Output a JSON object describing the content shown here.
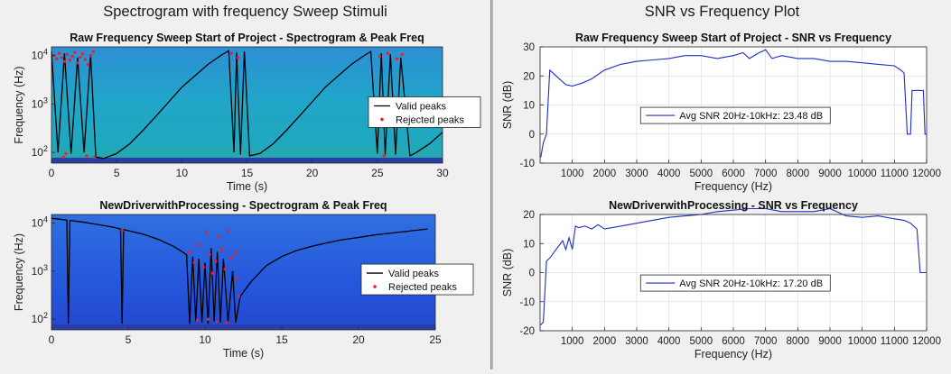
{
  "panels": {
    "left_title": "Spectrogram with frequency Sweep Stimuli",
    "right_title": "SNR vs Frequency Plot"
  },
  "colors": {
    "valid_peaks": "#000000",
    "rejected_peaks": "#e8222a",
    "snr_line": "#1f2fbf",
    "spectrogram_floor": "#2a3ca8"
  },
  "chart_data": [
    {
      "id": "spec1",
      "type": "spectrogram",
      "title": "Raw Frequency Sweep Start of Project - Spectrogram & Peak Freq",
      "xlabel": "Time (s)",
      "ylabel": "Frequency (Hz)",
      "xlim": [
        0,
        30
      ],
      "ylim": [
        60,
        15000
      ],
      "yscale": "log",
      "xticks": [
        0,
        5,
        10,
        15,
        20,
        25,
        30
      ],
      "yticks": [
        {
          "value": 100,
          "base": "10",
          "exp": "2"
        },
        {
          "value": 1000,
          "base": "10",
          "exp": "3"
        },
        {
          "value": 10000,
          "base": "10",
          "exp": "4"
        }
      ],
      "legend": {
        "placement": "right",
        "entries": [
          "Valid peaks",
          "Rejected peaks"
        ]
      },
      "series": [
        {
          "name": "Valid peaks",
          "kind": "line",
          "points": [
            [
              0.0,
              12000
            ],
            [
              0.5,
              100
            ],
            [
              1.0,
              11000
            ],
            [
              1.5,
              95
            ],
            [
              2.0,
              9000
            ],
            [
              2.5,
              100
            ],
            [
              3.0,
              10500
            ],
            [
              3.4,
              80
            ],
            [
              4.0,
              75
            ],
            [
              5.0,
              95
            ],
            [
              6.0,
              150
            ],
            [
              7.0,
              280
            ],
            [
              8.0,
              550
            ],
            [
              9.0,
              1100
            ],
            [
              10.0,
              2200
            ],
            [
              11.0,
              3800
            ],
            [
              12.0,
              6500
            ],
            [
              13.0,
              10000
            ],
            [
              13.6,
              12500
            ],
            [
              14.0,
              100
            ],
            [
              14.2,
              11500
            ],
            [
              14.5,
              90
            ],
            [
              14.8,
              12000
            ],
            [
              15.2,
              85
            ],
            [
              16.0,
              95
            ],
            [
              17.0,
              150
            ],
            [
              18.0,
              280
            ],
            [
              19.0,
              550
            ],
            [
              20.0,
              1100
            ],
            [
              21.0,
              2200
            ],
            [
              22.0,
              3800
            ],
            [
              23.0,
              6500
            ],
            [
              24.0,
              10000
            ],
            [
              24.5,
              12000
            ],
            [
              25.0,
              95
            ],
            [
              25.3,
              11000
            ],
            [
              25.6,
              90
            ],
            [
              26.0,
              10500
            ],
            [
              26.4,
              90
            ],
            [
              26.8,
              9000
            ],
            [
              27.5,
              85
            ],
            [
              28.0,
              100
            ],
            [
              29.0,
              150
            ],
            [
              30.0,
              260
            ]
          ]
        },
        {
          "name": "Rejected peaks",
          "kind": "scatter",
          "points": [
            [
              0.2,
              10000
            ],
            [
              0.4,
              8500
            ],
            [
              0.6,
              11000
            ],
            [
              0.8,
              9000
            ],
            [
              1.0,
              7500
            ],
            [
              1.2,
              10500
            ],
            [
              1.4,
              8000
            ],
            [
              1.6,
              9500
            ],
            [
              1.8,
              11500
            ],
            [
              2.0,
              7000
            ],
            [
              2.2,
              9200
            ],
            [
              2.4,
              10800
            ],
            [
              2.6,
              8200
            ],
            [
              2.8,
              6500
            ],
            [
              3.0,
              9800
            ],
            [
              3.2,
              12000
            ],
            [
              0.9,
              80
            ],
            [
              1.1,
              95
            ],
            [
              2.7,
              85
            ],
            [
              3.3,
              78
            ],
            [
              13.8,
              11000
            ],
            [
              14.3,
              9000
            ],
            [
              25.2,
              9500
            ],
            [
              25.8,
              11000
            ],
            [
              26.5,
              8500
            ],
            [
              26.9,
              10500
            ],
            [
              25.5,
              85
            ]
          ]
        }
      ]
    },
    {
      "id": "spec2",
      "type": "spectrogram",
      "title": "NewDriverwithProcessing - Spectrogram & Peak Freq",
      "xlabel": "Time (s)",
      "ylabel": "Frequency (Hz)",
      "xlim": [
        0,
        25
      ],
      "ylim": [
        60,
        15000
      ],
      "yscale": "log",
      "xticks": [
        0,
        5,
        10,
        15,
        20,
        25
      ],
      "yticks": [
        {
          "value": 100,
          "base": "10",
          "exp": "2"
        },
        {
          "value": 1000,
          "base": "10",
          "exp": "3"
        },
        {
          "value": 10000,
          "base": "10",
          "exp": "4"
        }
      ],
      "legend": {
        "placement": "right",
        "entries": [
          "Valid peaks",
          "Rejected peaks"
        ]
      },
      "series": [
        {
          "name": "Valid peaks",
          "kind": "line",
          "points": [
            [
              0.0,
              12500
            ],
            [
              1.0,
              11500
            ],
            [
              1.1,
              80
            ],
            [
              1.2,
              11300
            ],
            [
              2.0,
              10500
            ],
            [
              3.0,
              9300
            ],
            [
              4.0,
              8200
            ],
            [
              4.5,
              7500
            ],
            [
              4.6,
              80
            ],
            [
              4.7,
              7300
            ],
            [
              6.0,
              5800
            ],
            [
              7.0,
              4500
            ],
            [
              8.0,
              3200
            ],
            [
              8.8,
              2200
            ],
            [
              9.0,
              80
            ],
            [
              9.2,
              2000
            ],
            [
              9.4,
              90
            ],
            [
              9.6,
              1800
            ],
            [
              9.8,
              85
            ],
            [
              10.0,
              1500
            ],
            [
              10.2,
              80
            ],
            [
              10.4,
              3000
            ],
            [
              10.6,
              90
            ],
            [
              10.8,
              2500
            ],
            [
              11.0,
              85
            ],
            [
              11.2,
              1800
            ],
            [
              11.5,
              90
            ],
            [
              11.8,
              1000
            ],
            [
              12.0,
              85
            ],
            [
              12.3,
              300
            ],
            [
              13.0,
              600
            ],
            [
              14.0,
              1300
            ],
            [
              15.0,
              2000
            ],
            [
              16.0,
              2700
            ],
            [
              17.0,
              3300
            ],
            [
              18.0,
              3900
            ],
            [
              19.0,
              4500
            ],
            [
              20.0,
              5000
            ],
            [
              21.0,
              5600
            ],
            [
              22.0,
              6100
            ],
            [
              23.0,
              6600
            ],
            [
              24.0,
              7200
            ],
            [
              24.5,
              7500
            ]
          ]
        },
        {
          "name": "Rejected peaks",
          "kind": "scatter",
          "points": [
            [
              4.6,
              7000
            ],
            [
              9.0,
              2500
            ],
            [
              9.3,
              1500
            ],
            [
              9.6,
              3500
            ],
            [
              9.9,
              1200
            ],
            [
              10.1,
              6500
            ],
            [
              10.3,
              2200
            ],
            [
              10.5,
              900
            ],
            [
              10.7,
              1600
            ],
            [
              10.9,
              5200
            ],
            [
              11.1,
              2800
            ],
            [
              11.3,
              1100
            ],
            [
              11.5,
              6800
            ],
            [
              11.7,
              1900
            ],
            [
              12.0,
              2400
            ],
            [
              12.2,
              300
            ],
            [
              10.2,
              100
            ],
            [
              10.8,
              90
            ],
            [
              11.4,
              85
            ],
            [
              9.5,
              95
            ],
            [
              12.1,
              700
            ]
          ]
        }
      ]
    },
    {
      "id": "snr1",
      "type": "line",
      "title": "Raw Frequency Sweep Start of Project - SNR vs Frequency",
      "xlabel": "Frequency (Hz)",
      "ylabel": "SNR (dB)",
      "xlim": [
        0,
        12000
      ],
      "ylim": [
        -10,
        30
      ],
      "xticks": [
        1000,
        2000,
        3000,
        4000,
        5000,
        6000,
        7000,
        8000,
        9000,
        10000,
        11000,
        12000
      ],
      "yticks": [
        -10,
        0,
        10,
        20,
        30
      ],
      "grid": true,
      "legend": {
        "placement": "center-left",
        "entries": [
          "Avg SNR 20Hz-10kHz: 23.48 dB"
        ]
      },
      "series": [
        {
          "name": "Avg SNR 20Hz-10kHz: 23.48 dB",
          "x": [
            20,
            100,
            200,
            300,
            500,
            800,
            1000,
            1300,
            1600,
            2000,
            2500,
            3000,
            3500,
            4000,
            4500,
            5000,
            5500,
            6000,
            6300,
            6500,
            6800,
            7000,
            7200,
            7500,
            8000,
            8500,
            9000,
            9500,
            10000,
            10500,
            11000,
            11200,
            11300,
            11400,
            11500,
            11550,
            11800,
            11900,
            11950,
            12000
          ],
          "y": [
            -8,
            -3,
            0,
            22,
            20,
            17,
            16.5,
            17.5,
            19,
            22,
            24,
            25,
            25.5,
            26,
            27,
            27,
            26,
            27,
            28,
            26,
            28,
            29,
            26,
            27,
            26,
            26,
            25,
            25,
            24.5,
            24,
            23.5,
            22,
            21,
            0,
            0,
            15,
            15,
            15,
            0,
            0
          ]
        }
      ]
    },
    {
      "id": "snr2",
      "type": "line",
      "title": "NewDriverwithProcessing - SNR vs Frequency",
      "xlabel": "Frequency (Hz)",
      "ylabel": "SNR (dB)",
      "xlim": [
        0,
        12000
      ],
      "ylim": [
        -20,
        20
      ],
      "xticks": [
        1000,
        2000,
        3000,
        4000,
        5000,
        6000,
        7000,
        8000,
        9000,
        10000,
        11000,
        12000
      ],
      "yticks": [
        -20,
        -10,
        0,
        10,
        20
      ],
      "grid": true,
      "legend": {
        "placement": "center-left",
        "entries": [
          "Avg SNR 20Hz-10kHz: 17.20 dB"
        ]
      },
      "series": [
        {
          "name": "Avg SNR 20Hz-10kHz: 17.20 dB",
          "x": [
            20,
            100,
            200,
            300,
            500,
            700,
            800,
            900,
            1000,
            1100,
            1200,
            1400,
            1600,
            1800,
            2000,
            2500,
            3000,
            3500,
            4000,
            4500,
            5000,
            5500,
            6000,
            6500,
            7000,
            7500,
            8000,
            8500,
            9000,
            9500,
            10000,
            10500,
            11000,
            11300,
            11500,
            11700,
            11800,
            11900,
            12000
          ],
          "y": [
            -18,
            -17,
            4,
            5,
            8,
            11,
            8,
            12,
            8,
            16,
            15.5,
            16,
            15,
            16.5,
            15,
            16,
            17,
            18,
            19,
            19.5,
            20,
            21,
            21.5,
            22,
            22,
            21,
            21,
            21,
            22,
            19.5,
            19,
            19.5,
            18.5,
            18,
            17,
            15,
            0,
            0,
            0
          ]
        }
      ]
    }
  ]
}
